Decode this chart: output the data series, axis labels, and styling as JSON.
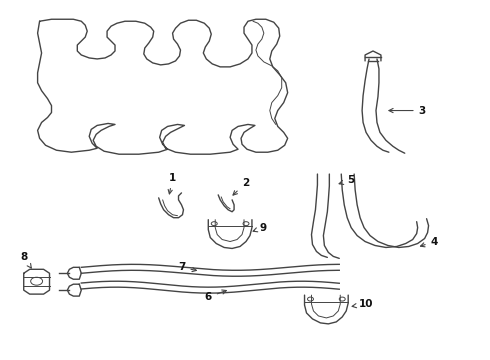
{
  "background": "#ffffff",
  "line_color": "#444444",
  "label_color": "#111111",
  "label_fs": 7.5,
  "lw_main": 1.0,
  "lw_thin": 0.7
}
